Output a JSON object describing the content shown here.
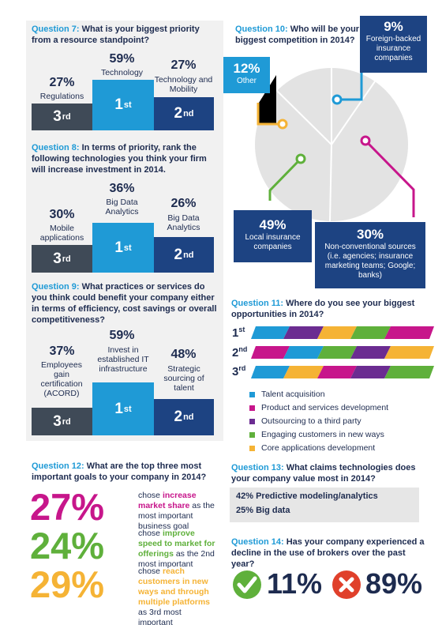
{
  "q7": {
    "number": "Question 7:",
    "text": "What is your biggest priority from a resource standpoint?",
    "first": {
      "pct": "59%",
      "label": "Technology",
      "rank": "1",
      "suffix": "st"
    },
    "second": {
      "pct": "27%",
      "label": "Technology and Mobility",
      "rank": "2",
      "suffix": "nd"
    },
    "third": {
      "pct": "27%",
      "label": "Regulations",
      "rank": "3",
      "suffix": "rd"
    }
  },
  "q8": {
    "number": "Question 8:",
    "text": "In terms of priority, rank the following technologies you think your firm will increase investment in 2014.",
    "first": {
      "pct": "36%",
      "label": "Big Data Analytics",
      "rank": "1",
      "suffix": "st"
    },
    "second": {
      "pct": "26%",
      "label": "Big Data Analytics",
      "rank": "2",
      "suffix": "nd"
    },
    "third": {
      "pct": "30%",
      "label": "Mobile applications",
      "rank": "3",
      "suffix": "rd"
    }
  },
  "q9": {
    "number": "Question 9:",
    "text": "What practices or services do you think could benefit your company either in terms of efficiency, cost savings or overall competitiveness?",
    "first": {
      "pct": "59%",
      "label": "Invest in established IT infrastructure",
      "rank": "1",
      "suffix": "st"
    },
    "second": {
      "pct": "48%",
      "label": "Strategic sourcing of talent",
      "rank": "2",
      "suffix": "nd"
    },
    "third": {
      "pct": "37%",
      "label": "Employees gain certification (ACORD)",
      "rank": "3",
      "suffix": "rd"
    }
  },
  "q10": {
    "number": "Question 10:",
    "text": "Who will be your biggest competition in 2014?",
    "other": {
      "pct": "12%",
      "label": "Other"
    },
    "foreign": {
      "pct": "9%",
      "label": "Foreign-backed insurance companies"
    },
    "local": {
      "pct": "49%",
      "label": "Local insurance companies"
    },
    "nonconv": {
      "pct": "30%",
      "label": "Non-conventional sources (i.e. agencies; insurance marketing teams; Google; banks)"
    }
  },
  "q11": {
    "number": "Question 11:",
    "text": "Where do you see your biggest opportunities in 2014?",
    "ranks": [
      {
        "n": "1",
        "s": "st"
      },
      {
        "n": "2",
        "s": "nd"
      },
      {
        "n": "3",
        "s": "rd"
      }
    ],
    "legend": [
      {
        "label": "Talent acquisition",
        "color": "#1f9ad6"
      },
      {
        "label": "Product and services development",
        "color": "#c7168b"
      },
      {
        "label": "Outsourcing to a third party",
        "color": "#6b2c91"
      },
      {
        "label": "Engaging customers in new ways",
        "color": "#5fb03b"
      },
      {
        "label": "Core applications development",
        "color": "#f5b335"
      }
    ]
  },
  "q12": {
    "number": "Question 12:",
    "text": "What are the top three most important goals to your company in 2014?",
    "goals": [
      {
        "pct": "27%",
        "color": "#c7168b",
        "pre": "chose ",
        "hl": "increase market share",
        "post": " as the most important business goal"
      },
      {
        "pct": "24%",
        "color": "#5fb03b",
        "pre": "chose ",
        "hl": "improve speed to market for offerings",
        "post": " as the 2nd most important"
      },
      {
        "pct": "29%",
        "color": "#f5b335",
        "pre": "chose ",
        "hl": "reach customers in new ways and through multiple platforms",
        "post": " as 3rd most important"
      }
    ]
  },
  "q13": {
    "number": "Question 13:",
    "text": "What claims technologies does your company value most in 2014?",
    "items": [
      "42% Predictive modeling/analytics",
      "25% Big data"
    ]
  },
  "q14": {
    "number": "Question 14:",
    "text": "Has your company experienced a decline in the use of brokers over the past year?",
    "yes_pct": "11%",
    "no_pct": "89%"
  }
}
